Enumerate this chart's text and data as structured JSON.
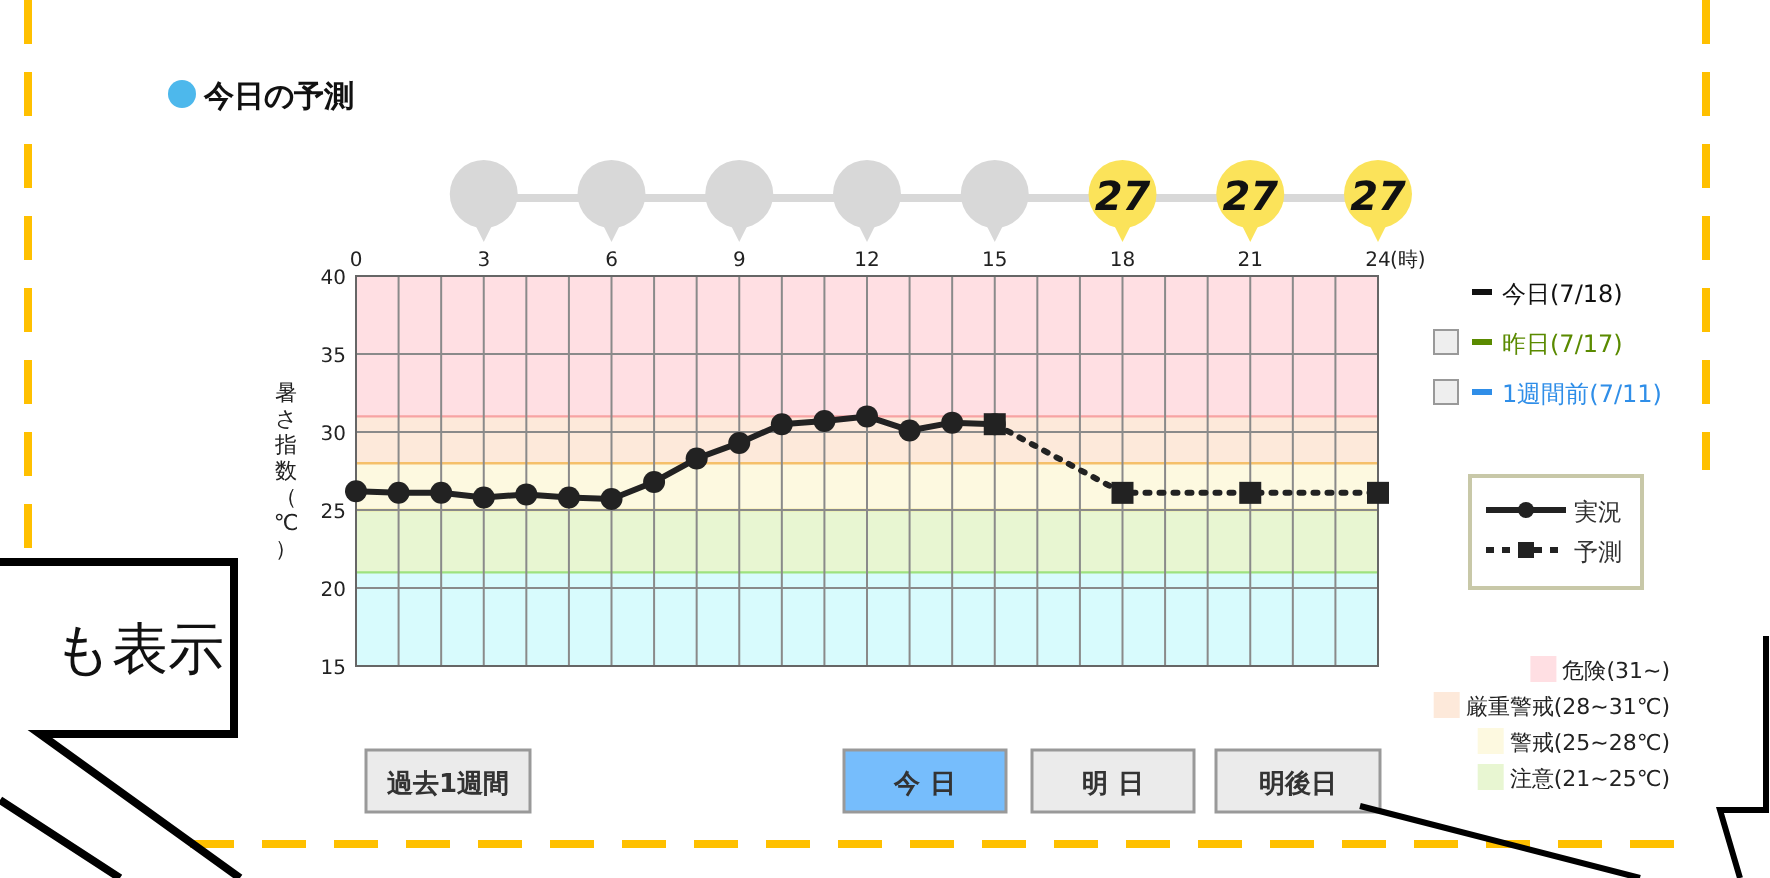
{
  "chart_data": {
    "type": "line",
    "title": "今日の予測",
    "xlabel": "(時)",
    "ylabel": "暑さ指数（℃）",
    "x": [
      0,
      1,
      2,
      3,
      4,
      5,
      6,
      7,
      8,
      9,
      10,
      11,
      12,
      13,
      14,
      15
    ],
    "series": [
      {
        "name": "予測",
        "color": "#222222",
        "x": [
          15,
          18,
          21,
          24
        ],
        "values": [
          30.5,
          26.1,
          26.1,
          26.1
        ],
        "marker": "square",
        "line_style": "dotted"
      },
      {
        "name": "実況",
        "color": "#222222",
        "values": [
          26.2,
          26.1,
          26.1,
          25.8,
          26.0,
          25.8,
          25.7,
          26.8,
          28.3,
          29.3,
          30.5,
          30.7,
          31.0,
          30.1,
          30.6,
          30.5
        ],
        "marker": "circle",
        "line_style": "solid"
      }
    ],
    "xlim": [
      0,
      24
    ],
    "xticks": [
      0,
      {
        "value": 1,
        "label": null
      },
      {
        "value": 2,
        "label": null
      },
      3,
      {
        "value": 4,
        "label": null
      },
      {
        "value": 5,
        "label": null
      },
      6,
      {
        "value": 7,
        "label": null
      },
      {
        "value": 8,
        "label": null
      },
      9,
      {
        "value": 10,
        "label": null
      },
      {
        "value": 11,
        "label": null
      },
      12,
      {
        "value": 13,
        "label": null
      },
      {
        "value": 14,
        "label": null
      },
      15,
      {
        "value": 16,
        "label": null
      },
      {
        "value": 17,
        "label": null
      },
      18,
      {
        "value": 19,
        "label": null
      },
      {
        "value": 20,
        "label": null
      },
      21,
      {
        "value": 22,
        "label": null
      },
      {
        "value": 23,
        "label": null
      },
      24
    ],
    "ref_lines": [
      {
        "axis": "y",
        "value": 31,
        "color": "#f7a3a3"
      },
      {
        "axis": "y",
        "value": 28,
        "color": "#f5c06a"
      },
      {
        "axis": "y",
        "value": 25,
        "color": "#f3e36a"
      },
      {
        "axis": "y",
        "value": 21,
        "color": "#9ee27e"
      }
    ],
    "ylim": [
      15,
      40
    ],
    "yticks": [
      15,
      20,
      25,
      30,
      35,
      40
    ],
    "grid": true,
    "legend": "right",
    "bands": [
      {
        "axis": "y",
        "from": 31,
        "to": 40,
        "label": "危険(31~)",
        "color": "#ffdfe3"
      },
      {
        "axis": "y",
        "from": 28,
        "to": 31,
        "label": "厳重警戒(28~31℃)",
        "color": "#fde9da"
      },
      {
        "axis": "y",
        "from": 25,
        "to": 28,
        "label": "警戒(25~28℃)",
        "color": "#fdf9e0"
      },
      {
        "axis": "y",
        "from": 21,
        "to": 25,
        "label": "注意(21~25℃)",
        "color": "#e8f6d2"
      },
      {
        "axis": "y",
        "from": 15,
        "to": 21,
        "label": null,
        "color": "#d8fbfd"
      }
    ],
    "annotations": [
      "今日(7/18)",
      "昨日(7/17)",
      "1週間前(7/11)",
      "過去1週間",
      "今 日",
      "明 日",
      "明後日",
      "も表示",
      "27",
      "27",
      "27"
    ]
  }
}
